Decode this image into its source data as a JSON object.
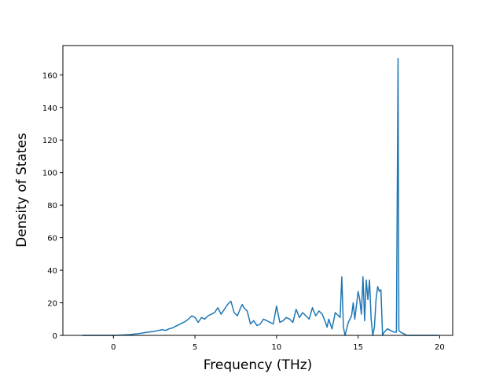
{
  "chart_data": {
    "type": "line",
    "title": "",
    "xlabel": "Frequency (THz)",
    "ylabel": "Density of States",
    "xlim": [
      -3.1,
      20.8
    ],
    "ylim": [
      0,
      178
    ],
    "xticks": [
      0,
      5,
      10,
      15,
      20
    ],
    "yticks": [
      0,
      20,
      40,
      60,
      80,
      100,
      120,
      140,
      160
    ],
    "grid": false,
    "legend": "none",
    "line_color": "#1f77b4",
    "series": [
      {
        "x": [
          -1.9,
          -1.0,
          0.0,
          0.5,
          1.0,
          1.5,
          2.0,
          2.5,
          3.0,
          3.2,
          3.4,
          3.6,
          3.8,
          4.0,
          4.2,
          4.4,
          4.6,
          4.8,
          5.0,
          5.2,
          5.4,
          5.6,
          5.8,
          6.0,
          6.2,
          6.4,
          6.6,
          6.8,
          7.0,
          7.2,
          7.4,
          7.6,
          7.8,
          7.9,
          8.0,
          8.2,
          8.4,
          8.6,
          8.8,
          9.0,
          9.2,
          9.4,
          9.6,
          9.8,
          10.0,
          10.2,
          10.4,
          10.6,
          10.8,
          11.0,
          11.2,
          11.4,
          11.6,
          11.8,
          12.0,
          12.2,
          12.4,
          12.6,
          12.8,
          13.0,
          13.1,
          13.2,
          13.4,
          13.6,
          13.8,
          13.9,
          14.0,
          14.1,
          14.2,
          14.4,
          14.6,
          14.7,
          14.8,
          15.0,
          15.1,
          15.2,
          15.3,
          15.4,
          15.5,
          15.6,
          15.7,
          15.8,
          15.9,
          16.0,
          16.1,
          16.2,
          16.3,
          16.4,
          16.5,
          16.6,
          16.8,
          17.0,
          17.2,
          17.35,
          17.45,
          17.5,
          17.6,
          17.8,
          18.0,
          18.5,
          19.0,
          19.5,
          19.9
        ],
        "values": [
          0,
          0,
          0,
          0.2,
          0.5,
          1,
          1.8,
          2.5,
          3.5,
          3,
          4,
          4.5,
          5.5,
          6.5,
          7.5,
          8.5,
          10,
          12,
          11,
          8,
          11,
          10,
          12,
          13,
          14,
          17,
          13,
          16,
          19,
          21,
          14,
          12,
          17,
          19,
          17,
          15,
          7,
          9,
          6,
          7,
          10,
          9,
          8,
          7,
          18,
          8,
          9,
          11,
          10,
          8,
          16,
          11,
          14,
          12,
          10,
          17,
          12,
          15,
          13,
          8,
          5,
          10,
          4,
          14,
          12,
          11,
          36,
          5,
          0,
          8,
          12,
          20,
          10,
          27,
          22,
          13,
          36,
          9,
          34,
          22,
          34,
          10,
          0,
          5,
          22,
          30,
          27,
          28,
          0,
          2,
          4,
          3,
          2,
          2,
          170,
          3,
          2,
          1,
          0,
          0,
          0,
          0,
          0
        ]
      }
    ]
  }
}
